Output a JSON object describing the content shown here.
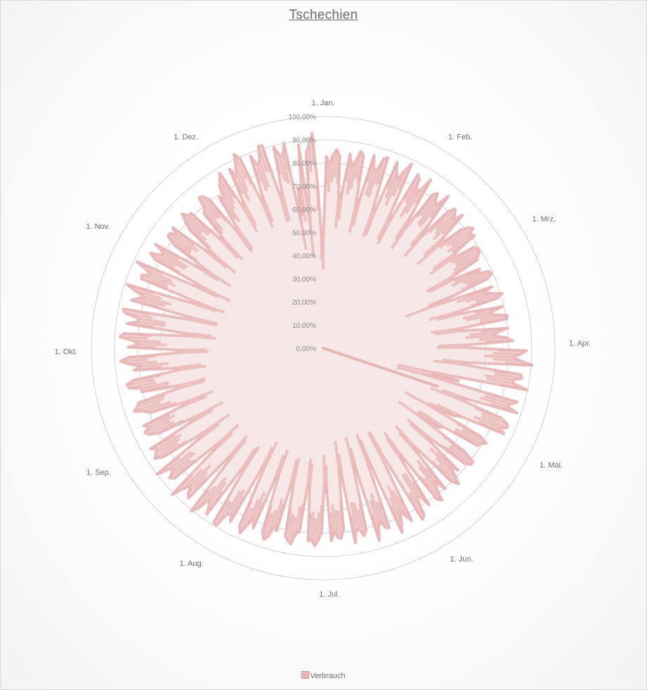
{
  "chart_data": {
    "type": "radar",
    "title": "Tschechien",
    "radial_axis": {
      "min": 0,
      "max": 100,
      "step": 10,
      "tick_labels": [
        "0,00%",
        "10,00%",
        "20,00%",
        "30,00%",
        "40,00%",
        "50,00%",
        "60,00%",
        "70,00%",
        "80,00%",
        "90,00%",
        "100,00%"
      ]
    },
    "angular_axis": {
      "unit": "day of year",
      "labels": [
        "1. Jan.",
        "1. Feb.",
        "1. Mrz.",
        "1. Apr.",
        "1. Mai.",
        "1. Jun.",
        "1. Jul.",
        "1. Aug.",
        "1. Sep.",
        "1. Okt.",
        "1. Nov.",
        "1. Dez."
      ],
      "label_days": [
        1,
        32,
        60,
        91,
        121,
        152,
        182,
        213,
        244,
        274,
        305,
        335
      ],
      "days_in_year": 365
    },
    "legend_position": "bottom",
    "grid": true,
    "series": [
      {
        "name": "Verbrauch",
        "color": "#e8b4b4",
        "fill": "#f6e6e6",
        "weekday_level_by_month": [
          84,
          82,
          78,
          86,
          80,
          82,
          84,
          86,
          84,
          84,
          82,
          88
        ],
        "weekend_level_by_month": [
          64,
          66,
          60,
          62,
          58,
          54,
          58,
          64,
          62,
          60,
          62,
          70
        ],
        "holiday_dips": [
          {
            "day": 1,
            "value": 46
          },
          {
            "day": 71,
            "value": 50
          },
          {
            "day": 105,
            "value": 45
          },
          {
            "day": 107,
            "value": 45
          },
          {
            "day": 121,
            "value": 52
          },
          {
            "day": 128,
            "value": 52
          },
          {
            "day": 356,
            "value": 55
          },
          {
            "day": 360,
            "value": 52
          },
          {
            "day": 365,
            "value": 50
          }
        ],
        "closing_point": {
          "day": 111,
          "value": 0
        }
      }
    ]
  }
}
